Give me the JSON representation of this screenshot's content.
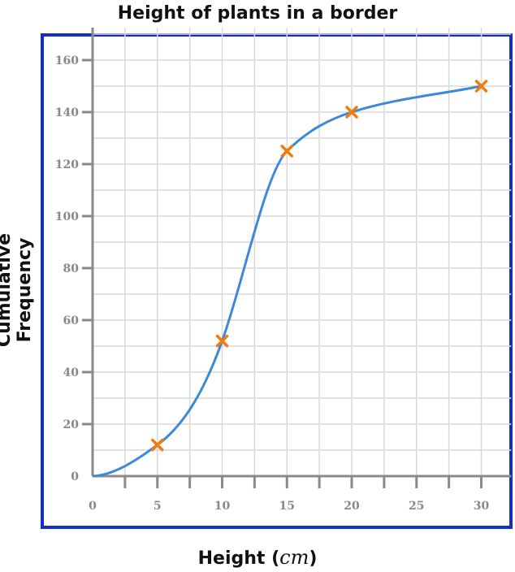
{
  "chart_data": {
    "type": "line",
    "title": "Height of plants in a border",
    "xlabel_text": "Height (",
    "xlabel_unit": "cm",
    "xlabel_close": ")",
    "ylabel": "Cumulative Frequency",
    "xlim": [
      0,
      32
    ],
    "ylim": [
      0,
      170
    ],
    "x_ticks": [
      0,
      5,
      10,
      15,
      20,
      25,
      30
    ],
    "y_ticks": [
      0,
      20,
      40,
      60,
      80,
      100,
      120,
      140,
      160
    ],
    "grid": true,
    "series": [
      {
        "x": [
          5,
          10,
          15,
          20,
          30
        ],
        "y": [
          12,
          52,
          125,
          140,
          150
        ],
        "curve_start": [
          0,
          0
        ],
        "line_color": "#3b8ad9",
        "marker_color": "#f07b0f",
        "marker": "x"
      }
    ],
    "frame_color": "#1230c4"
  }
}
